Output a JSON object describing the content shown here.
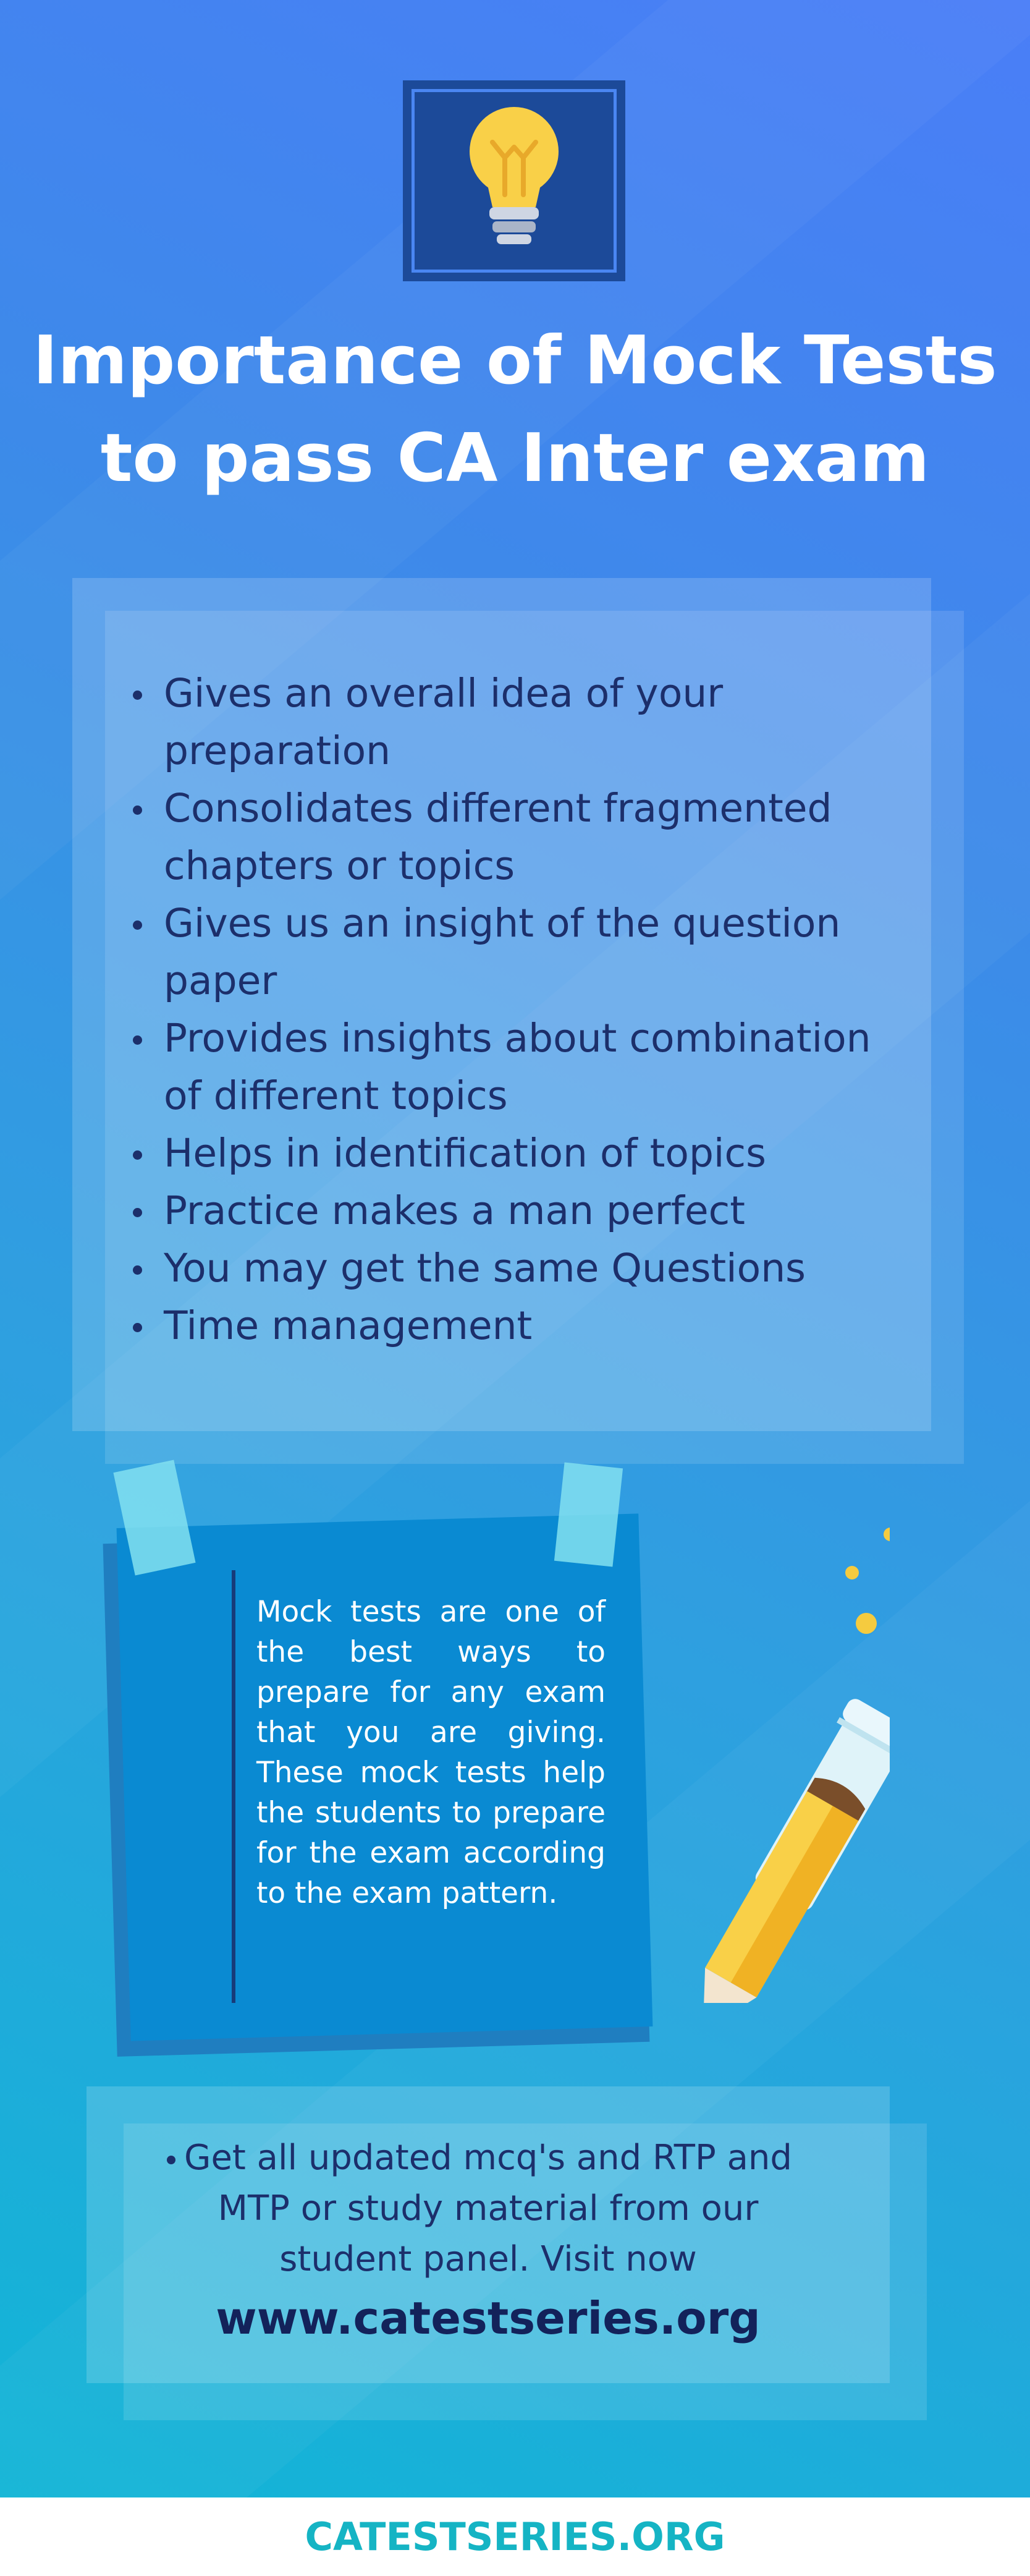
{
  "title": {
    "line1": "Importance of Mock Tests",
    "line2": "to pass CA Inter exam"
  },
  "points": [
    "Gives an overall idea of your preparation",
    "Consolidates different fragmented chapters or topics",
    "Gives us an insight of the question paper",
    "Provides insights about combination of different topics",
    "Helps in identification of topics",
    "Practice makes a man perfect",
    "You may get the same Questions",
    "Time management"
  ],
  "note": {
    "text": "Mock tests are one of the best ways to prepare for any exam that you are giving. These mock tests help the students to prepare for the exam according to the exam pattern."
  },
  "cta": {
    "text": "Get all updated mcq's and RTP and MTP or study material from our student panel. Visit now",
    "url": "www.catestseries.org"
  },
  "footer": {
    "brand": "CATESTSERIES.ORG"
  },
  "icons": {
    "header": "lightbulb-icon",
    "illustration": "pencil-icon"
  },
  "colors": {
    "text_dark": "#1c2f6b",
    "brand": "#15b4c4",
    "icon_frame": "#1c4a99",
    "bulb": "#f9d048"
  }
}
